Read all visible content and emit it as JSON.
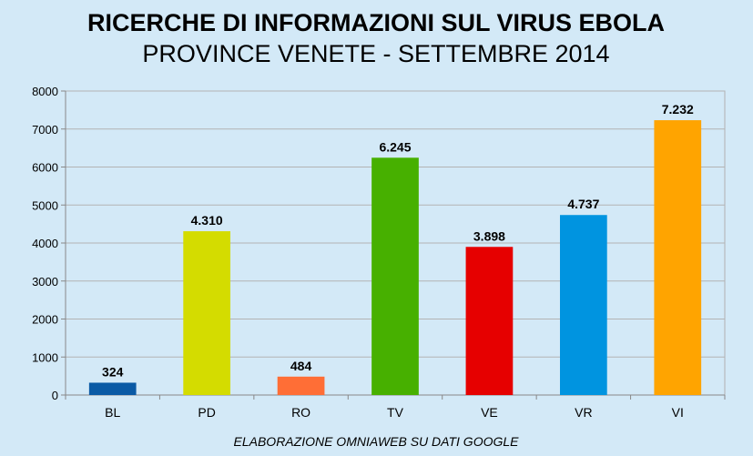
{
  "chart_data": {
    "type": "bar",
    "title": "RICERCHE DI INFORMAZIONI SUL VIRUS EBOLA",
    "subtitle": "PROVINCE VENETE - SETTEMBRE 2014",
    "footer": "ELABORAZIONE OMNIAWEB SU DATI GOOGLE",
    "categories": [
      "BL",
      "PD",
      "RO",
      "TV",
      "VE",
      "VR",
      "VI"
    ],
    "values": [
      324,
      4310,
      484,
      6245,
      3898,
      4737,
      7232
    ],
    "data_labels": [
      "324",
      "4.310",
      "484",
      "6.245",
      "3.898",
      "4.737",
      "7.232"
    ],
    "colors": [
      "#0a5aa5",
      "#d4dc00",
      "#ff6e36",
      "#47b000",
      "#e60000",
      "#0094e0",
      "#ffa400"
    ],
    "ylim": [
      0,
      8000
    ],
    "yticks": [
      0,
      1000,
      2000,
      3000,
      4000,
      5000,
      6000,
      7000,
      8000
    ],
    "ytick_labels": [
      "0",
      "1000",
      "2000",
      "3000",
      "4000",
      "5000",
      "6000",
      "7000",
      "8000"
    ],
    "grid": true,
    "legend": "none"
  }
}
